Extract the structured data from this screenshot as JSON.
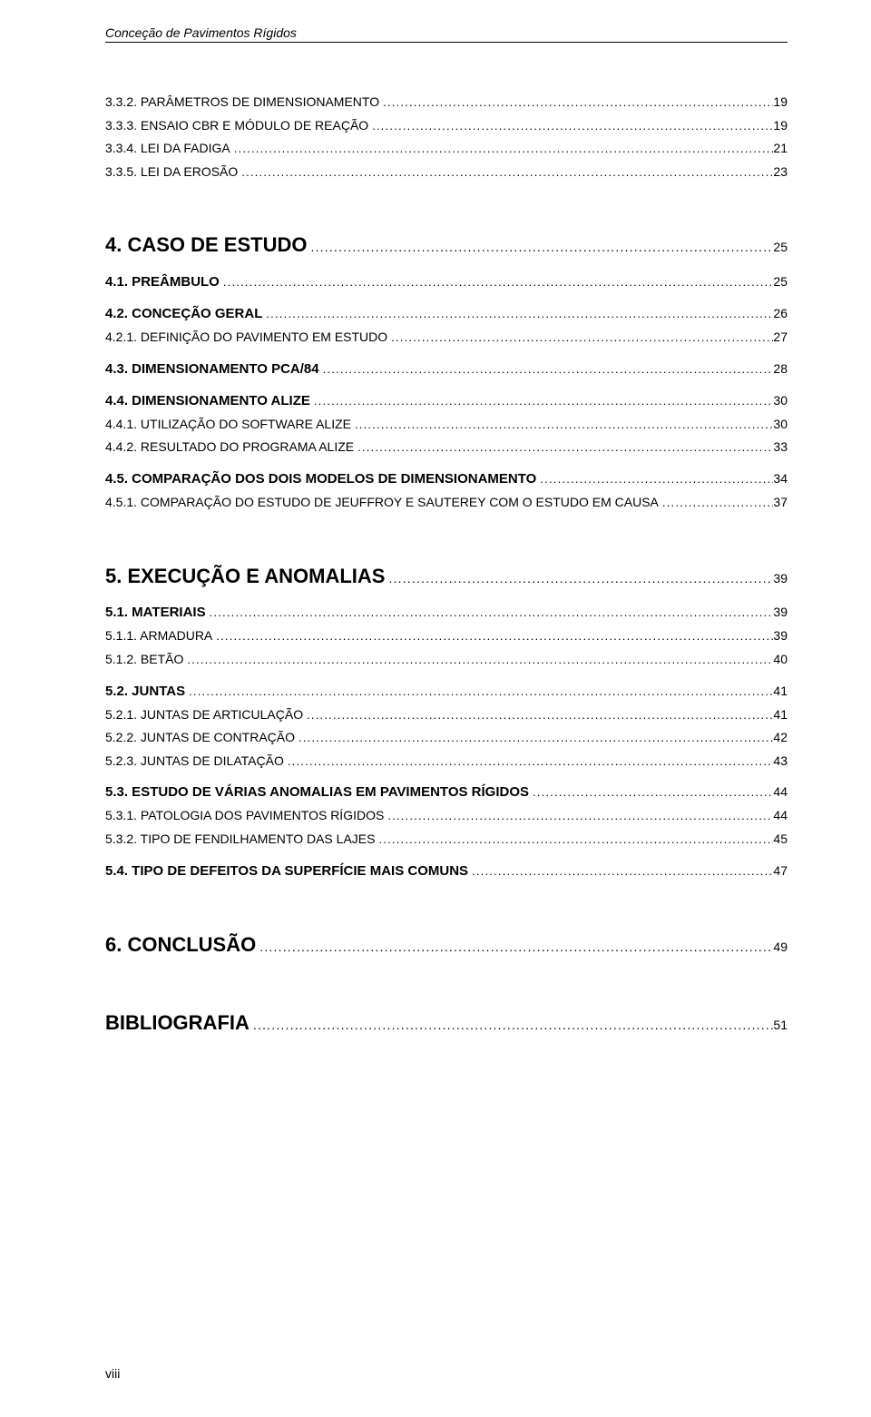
{
  "running_header": "Conceção de Pavimentos Rígidos",
  "footer_page": "viii",
  "leader_char": ".",
  "toc": [
    {
      "level": "l3",
      "label": "3.3.2. PARÂMETROS DE DIMENSIONAMENTO",
      "page": "19"
    },
    {
      "level": "l3",
      "label": "3.3.3. ENSAIO CBR E MÓDULO DE REAÇÃO",
      "page": "19"
    },
    {
      "level": "l3",
      "label": "3.3.4. LEI DA FADIGA",
      "page": "21"
    },
    {
      "level": "l3",
      "label": "3.3.5. LEI DA EROSÃO",
      "page": "23"
    },
    {
      "level": "h1",
      "label": "4. CASO DE ESTUDO",
      "page": "25"
    },
    {
      "level": "h2",
      "label": "4.1. PREÂMBULO",
      "page": "25"
    },
    {
      "level": "h2",
      "label": "4.2. CONCEÇÃO GERAL",
      "page": "26"
    },
    {
      "level": "l3",
      "label": "4.2.1. DEFINIÇÃO DO PAVIMENTO EM ESTUDO",
      "page": "27"
    },
    {
      "level": "h2b",
      "label": "4.3. DIMENSIONAMENTO PCA/84",
      "page": "28"
    },
    {
      "level": "h2b",
      "label": "4.4. DIMENSIONAMENTO ALIZE",
      "page": "30"
    },
    {
      "level": "l3",
      "label": "4.4.1. UTILIZAÇÃO DO SOFTWARE ALIZE",
      "page": "30"
    },
    {
      "level": "l3",
      "label": "4.4.2. RESULTADO DO PROGRAMA ALIZE",
      "page": "33"
    },
    {
      "level": "h2b",
      "label": "4.5. COMPARAÇÃO DOS DOIS MODELOS DE DIMENSIONAMENTO",
      "page": "34"
    },
    {
      "level": "l3",
      "label": "4.5.1. COMPARAÇÃO DO ESTUDO DE JEUFFROY E SAUTEREY COM O ESTUDO EM CAUSA",
      "page": "37"
    },
    {
      "level": "h1",
      "label": "5. EXECUÇÃO E ANOMALIAS",
      "page": "39"
    },
    {
      "level": "h2",
      "label": "5.1. MATERIAIS",
      "page": "39"
    },
    {
      "level": "l3",
      "label": "5.1.1. ARMADURA",
      "page": "39"
    },
    {
      "level": "l3",
      "label": "5.1.2. BETÃO",
      "page": "40"
    },
    {
      "level": "h2",
      "label": "5.2. JUNTAS",
      "page": "41"
    },
    {
      "level": "l3",
      "label": "5.2.1. JUNTAS DE ARTICULAÇÃO",
      "page": "41"
    },
    {
      "level": "l3",
      "label": "5.2.2. JUNTAS DE CONTRAÇÃO",
      "page": "42"
    },
    {
      "level": "l3",
      "label": "5.2.3. JUNTAS DE DILATAÇÃO",
      "page": "43"
    },
    {
      "level": "h2b",
      "label": "5.3. ESTUDO DE VÁRIAS ANOMALIAS EM PAVIMENTOS RÍGIDOS",
      "page": "44"
    },
    {
      "level": "l3",
      "label": "5.3.1. PATOLOGIA DOS PAVIMENTOS RÍGIDOS",
      "page": "44"
    },
    {
      "level": "l3",
      "label": "5.3.2. TIPO DE FENDILHAMENTO DAS LAJES",
      "page": "45"
    },
    {
      "level": "h2b",
      "label": "5.4. TIPO DE DEFEITOS DA SUPERFÍCIE MAIS COMUNS",
      "page": "47"
    },
    {
      "level": "h1",
      "label": "6. CONCLUSÃO",
      "page": "49"
    },
    {
      "level": "h1",
      "label": "BIBLIOGRAFIA",
      "page": "51"
    }
  ]
}
